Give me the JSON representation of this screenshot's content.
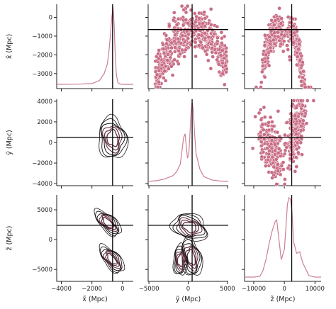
{
  "chart_data": {
    "type": "pairplot",
    "variables": [
      {
        "key": "x",
        "label": "x̃ (Mpc)",
        "range": [
          -4300,
          700
        ],
        "ticks": [
          -4000,
          -2000,
          0
        ],
        "tick_labels": [
          "−4000",
          "−2000",
          "0"
        ],
        "row_range": [
          -3800,
          700
        ],
        "row_ticks": [
          0,
          -1000,
          -2000,
          -3000
        ],
        "row_tick_labels": [
          "0",
          "−1000",
          "−2000",
          "−3000"
        ],
        "truth": -650
      },
      {
        "key": "y",
        "label": "ỹ (Mpc)",
        "range": [
          -5100,
          5100
        ],
        "ticks": [
          -5000,
          0,
          5000
        ],
        "tick_labels": [
          "−5000",
          "0",
          "5000"
        ],
        "row_range": [
          -4200,
          4200
        ],
        "row_ticks": [
          4000,
          2000,
          0,
          -2000,
          -4000
        ],
        "row_tick_labels": [
          "4000",
          "2000",
          "0",
          "−2000",
          "−4000"
        ],
        "truth": 500
      },
      {
        "key": "z",
        "label": "z̃ (Mpc)",
        "range": [
          -13000,
          12000
        ],
        "ticks": [
          -10000,
          0,
          10000
        ],
        "tick_labels": [
          "−10000",
          "0",
          "10000"
        ],
        "row_range": [
          -7000,
          7500
        ],
        "row_ticks": [
          5000,
          0,
          -5000
        ],
        "row_tick_labels": [
          "5000",
          "0",
          "−5000"
        ],
        "truth": 2400
      }
    ],
    "colors": {
      "samples": "#c96d86",
      "kde_line": "#cc7f93",
      "contour_dark": "#1a1418",
      "contour_mid": "#5e2f40",
      "truth": "#000000"
    },
    "diagonal": {
      "x": {
        "x": [
          -4300,
          -3000,
          -2000,
          -1500,
          -1200,
          -1000,
          -900,
          -800,
          -700,
          -620,
          -550,
          -480,
          -400,
          -300,
          -150,
          0,
          200,
          700
        ],
        "density": [
          0.0,
          0.002,
          0.01,
          0.05,
          0.14,
          0.26,
          0.4,
          0.62,
          0.88,
          1.0,
          0.78,
          0.4,
          0.12,
          0.02,
          0.003,
          0.0,
          0.0,
          0.0
        ]
      },
      "y": {
        "x": [
          -5100,
          -4000,
          -3000,
          -2000,
          -1500,
          -1000,
          -800,
          -600,
          -400,
          -250,
          -100,
          50,
          200,
          350,
          500,
          650,
          800,
          1000,
          1500,
          2000,
          3000,
          4000,
          5100
        ],
        "density": [
          0.0,
          0.01,
          0.03,
          0.07,
          0.12,
          0.22,
          0.38,
          0.55,
          0.6,
          0.45,
          0.3,
          0.32,
          0.55,
          0.85,
          1.0,
          0.9,
          0.62,
          0.35,
          0.15,
          0.06,
          0.02,
          0.005,
          0.0
        ]
      },
      "z": {
        "x": [
          -13000,
          -10000,
          -8000,
          -7000,
          -6000,
          -5000,
          -4000,
          -3000,
          -2500,
          -2000,
          -1000,
          0,
          500,
          1000,
          1500,
          2000,
          2500,
          3000,
          4000,
          5000,
          6000,
          8000,
          10000,
          12000
        ],
        "density": [
          0.0,
          0.0,
          0.01,
          0.08,
          0.22,
          0.42,
          0.58,
          0.7,
          0.72,
          0.55,
          0.22,
          0.35,
          0.62,
          0.92,
          1.0,
          0.98,
          0.82,
          0.45,
          0.3,
          0.32,
          0.18,
          0.02,
          0.0,
          0.0
        ]
      }
    },
    "scatter_xy": {
      "y_center": [
        -700,
        400
      ],
      "y_spread": [
        800,
        850
      ],
      "x_center": -650,
      "x_spread": 550,
      "n": 520
    },
    "scatter_zx": {
      "clusters": [
        {
          "z_center": -4500,
          "z_spread": 2200,
          "x_center": -900,
          "x_spread": 700
        },
        {
          "z_center": 3000,
          "z_spread": 1600,
          "x_center": -1200,
          "x_spread": 900
        }
      ],
      "n": 520
    },
    "scatter_zy": {
      "clusters": [
        {
          "z_center": -4000,
          "z_spread": 2400,
          "y_center": -300,
          "y_spread": 1700
        },
        {
          "z_center": 3500,
          "z_spread": 1800,
          "y_center": 600,
          "y_spread": 1700
        }
      ],
      "n": 520
    },
    "kde2d_xy": {
      "center_x": -650,
      "center_y": 400,
      "sx": 320,
      "sy": 700
    },
    "kde2d_xz": {
      "lobes": [
        {
          "x": -950,
          "z": 2800,
          "sx": 300,
          "sz": 1400,
          "tilt": -0.8
        },
        {
          "x": -700,
          "z": -3300,
          "sx": 300,
          "sz": 1500,
          "tilt": -0.7
        }
      ]
    },
    "kde2d_yz": {
      "lobes": [
        {
          "y": 200,
          "z": 2100,
          "sy": 1300,
          "sz": 1500,
          "tilt": 0.4
        },
        {
          "y": 400,
          "z": -3000,
          "sy": 900,
          "sz": 1700,
          "tilt": -0.2
        },
        {
          "y": -1000,
          "z": -3500,
          "sy": 500,
          "sz": 1300,
          "tilt": 0.0
        }
      ]
    }
  }
}
